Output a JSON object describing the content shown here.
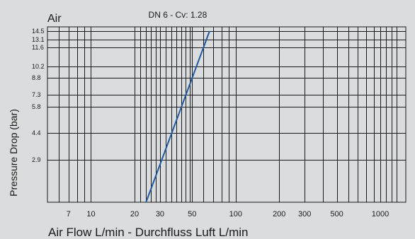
{
  "chart_data": {
    "type": "line",
    "title": "Air",
    "xlabel": "Air Flow L/min - Durchfluss Luft L/min",
    "ylabel": "Pressure Drop (bar)",
    "x_scale": "log",
    "y_scale": "custom",
    "xlim": [
      5,
      1500
    ],
    "x_ticks": [
      7,
      10,
      20,
      30,
      50,
      100,
      200,
      300,
      500,
      1000
    ],
    "x_tick_labels": [
      "7",
      "10",
      "20",
      "30",
      "50",
      "100",
      "200",
      "300",
      "500",
      "1000"
    ],
    "x_gridlines": [
      6,
      7,
      8,
      9,
      10,
      20,
      22,
      24,
      26,
      28,
      30,
      33,
      36,
      39,
      42,
      45,
      48,
      50,
      60,
      70,
      80,
      90,
      100,
      200,
      300,
      400,
      500,
      600,
      700,
      800,
      900,
      1000,
      1100,
      1200,
      1300
    ],
    "y_ticks": [
      2.9,
      4.4,
      5.8,
      7.3,
      8.8,
      10.2,
      11.6,
      13.1,
      14.5
    ],
    "y_tick_labels": [
      "2.9",
      "4.4",
      "5.8",
      "7.3",
      "8.8",
      "10.2",
      "11.6",
      "13.1",
      "14.5"
    ],
    "series": [
      {
        "name": "DN 6 - Cv: 1.28",
        "color": "#1f5aa0",
        "x": [
          24,
          66
        ],
        "y": [
          0.8,
          14.5
        ]
      }
    ],
    "grid": true,
    "legend": "annotation-top"
  }
}
